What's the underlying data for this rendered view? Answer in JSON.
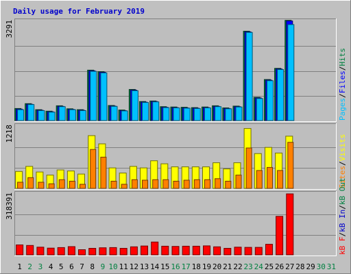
{
  "title": "Daily usage for February 2019",
  "colors": {
    "background": "#c0c0c0",
    "panel": "#bebebe",
    "title": "#0000cc",
    "hits": "#008040",
    "files": "#0000ff",
    "pages": "#00c0ff",
    "visits": "#ffff00",
    "sites": "#ff8000",
    "kbin": "#0000cc",
    "kbout": "#008040",
    "kbf": "#ff0000",
    "slash": "#000000",
    "weekday": "#000000",
    "weekend": "#008040"
  },
  "chart_data": [
    {
      "type": "bar",
      "name": "hits-files-pages",
      "ymax_label": "3291",
      "ylim": [
        0,
        3291
      ],
      "series_labels": [
        {
          "text": "Pages",
          "color": "#00c0ff"
        },
        {
          "text": "/",
          "color": "#000000"
        },
        {
          "text": "Files",
          "color": "#0000ff"
        },
        {
          "text": "/",
          "color": "#000000"
        },
        {
          "text": "Hits",
          "color": "#008040"
        }
      ],
      "series": [
        {
          "name": "Hits",
          "color": "#008040",
          "values": [
            400,
            560,
            360,
            310,
            490,
            390,
            360,
            1670,
            1620,
            500,
            350,
            1030,
            630,
            650,
            460,
            450,
            440,
            430,
            450,
            490,
            420,
            480,
            2960,
            770,
            1360,
            1730,
            3320,
            0
          ]
        },
        {
          "name": "Files",
          "color": "#0000ff",
          "values": [
            380,
            540,
            340,
            290,
            470,
            370,
            340,
            1650,
            1600,
            480,
            330,
            1010,
            610,
            630,
            440,
            430,
            420,
            410,
            430,
            470,
            400,
            460,
            2940,
            750,
            1340,
            1710,
            3300,
            0
          ]
        },
        {
          "name": "Pages",
          "color": "#00c0ff",
          "values": [
            360,
            530,
            330,
            280,
            460,
            360,
            330,
            1630,
            1580,
            470,
            320,
            990,
            600,
            620,
            430,
            420,
            410,
            400,
            420,
            460,
            390,
            450,
            2920,
            730,
            1320,
            1690,
            3180,
            0
          ]
        }
      ]
    },
    {
      "type": "bar",
      "name": "visits-sites",
      "ymax_label": "1218",
      "ylim": [
        0,
        1218
      ],
      "series_labels": [
        {
          "text": "Sites",
          "color": "#ff8000"
        },
        {
          "text": "/",
          "color": "#000000"
        },
        {
          "text": "Visits",
          "color": "#ffff00"
        }
      ],
      "series": [
        {
          "name": "Visits",
          "color": "#ffff00",
          "values": [
            330,
            430,
            320,
            260,
            360,
            340,
            280,
            1030,
            870,
            400,
            300,
            430,
            400,
            540,
            480,
            420,
            420,
            420,
            420,
            500,
            380,
            500,
            1170,
            680,
            800,
            690,
            1020,
            0
          ]
        },
        {
          "name": "Sites",
          "color": "#ff8000",
          "values": [
            120,
            210,
            120,
            90,
            170,
            140,
            80,
            760,
            610,
            140,
            80,
            170,
            160,
            170,
            170,
            140,
            160,
            170,
            170,
            190,
            140,
            260,
            790,
            350,
            410,
            350,
            900,
            0
          ]
        }
      ]
    },
    {
      "type": "bar",
      "name": "kbytes",
      "ymax_label": "318391",
      "ylim": [
        0,
        318391
      ],
      "series_labels": [
        {
          "text": "kB F",
          "color": "#ff0000"
        },
        {
          "text": "/",
          "color": "#000000"
        },
        {
          "text": "kB In",
          "color": "#0000cc"
        },
        {
          "text": "/",
          "color": "#000000"
        },
        {
          "text": "kB Out",
          "color": "#008040"
        }
      ],
      "series": [
        {
          "name": "kB F",
          "color": "#ff0000",
          "values": [
            52000,
            49000,
            40000,
            35000,
            38000,
            43000,
            27000,
            34000,
            37000,
            38000,
            34000,
            42000,
            46000,
            67000,
            45000,
            44000,
            45000,
            45000,
            47000,
            42000,
            34000,
            40000,
            39000,
            39000,
            55000,
            201000,
            318391,
            0
          ]
        }
      ]
    }
  ],
  "days": [
    {
      "label": "1",
      "weekend": false
    },
    {
      "label": "2",
      "weekend": true
    },
    {
      "label": "3",
      "weekend": true
    },
    {
      "label": "4",
      "weekend": false
    },
    {
      "label": "5",
      "weekend": false
    },
    {
      "label": "6",
      "weekend": false
    },
    {
      "label": "7",
      "weekend": false
    },
    {
      "label": "8",
      "weekend": false
    },
    {
      "label": "9",
      "weekend": true
    },
    {
      "label": "10",
      "weekend": true
    },
    {
      "label": "11",
      "weekend": false
    },
    {
      "label": "12",
      "weekend": false
    },
    {
      "label": "13",
      "weekend": false
    },
    {
      "label": "14",
      "weekend": false
    },
    {
      "label": "15",
      "weekend": false
    },
    {
      "label": "16",
      "weekend": true
    },
    {
      "label": "17",
      "weekend": true
    },
    {
      "label": "18",
      "weekend": false
    },
    {
      "label": "19",
      "weekend": false
    },
    {
      "label": "20",
      "weekend": false
    },
    {
      "label": "21",
      "weekend": false
    },
    {
      "label": "22",
      "weekend": false
    },
    {
      "label": "23",
      "weekend": true
    },
    {
      "label": "24",
      "weekend": true
    },
    {
      "label": "25",
      "weekend": false
    },
    {
      "label": "26",
      "weekend": false
    },
    {
      "label": "27",
      "weekend": false
    },
    {
      "label": "28",
      "weekend": false
    },
    {
      "label": "29",
      "weekend": false
    },
    {
      "label": "30",
      "weekend": true
    },
    {
      "label": "31",
      "weekend": true
    }
  ]
}
